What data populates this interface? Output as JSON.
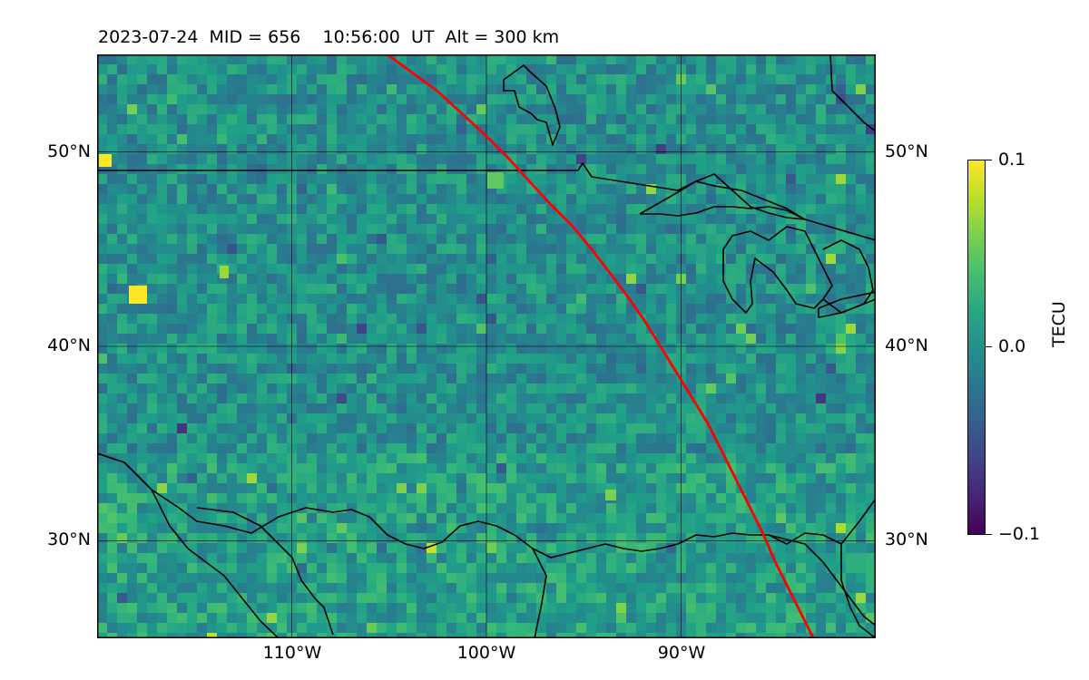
{
  "title": "2023-07-24  MID = 656    10:56:00  UT  Alt = 300 km",
  "map": {
    "lon_range": [
      -120,
      -80
    ],
    "lat_range": [
      25,
      55
    ],
    "lat_ticks": [
      {
        "value": 50,
        "label": "50°N"
      },
      {
        "value": 40,
        "label": "40°N"
      },
      {
        "value": 30,
        "label": "30°N"
      }
    ],
    "lon_ticks": [
      {
        "value": -110,
        "label": "110°W"
      },
      {
        "value": -100,
        "label": "100°W"
      },
      {
        "value": -90,
        "label": "90°W"
      }
    ],
    "grid": true,
    "track_color": "#ff0000",
    "coastline_color": "#000000",
    "terminator_track": [
      [
        -105.1,
        55.0
      ],
      [
        -104.0,
        54.2
      ],
      [
        -102.5,
        53.1
      ],
      [
        -101.3,
        52.0
      ],
      [
        -100.0,
        50.8
      ],
      [
        -98.9,
        49.7
      ],
      [
        -97.9,
        48.6
      ],
      [
        -96.8,
        47.4
      ],
      [
        -95.6,
        46.2
      ],
      [
        -94.6,
        45.0
      ],
      [
        -93.6,
        43.7
      ],
      [
        -92.7,
        42.5
      ],
      [
        -91.8,
        41.2
      ],
      [
        -91.0,
        39.9
      ],
      [
        -90.2,
        38.6
      ],
      [
        -89.4,
        37.3
      ],
      [
        -88.6,
        36.0
      ],
      [
        -87.9,
        34.6
      ],
      [
        -87.2,
        33.2
      ],
      [
        -86.5,
        31.8
      ],
      [
        -85.8,
        30.4
      ],
      [
        -85.2,
        29.0
      ],
      [
        -84.5,
        27.6
      ],
      [
        -83.8,
        26.2
      ],
      [
        -83.2,
        25.0
      ]
    ]
  },
  "colorbar": {
    "label": "TECU",
    "colormap": "viridis",
    "min": -0.1,
    "max": 0.1,
    "ticks": [
      {
        "value": 0.1,
        "label": "0.1"
      },
      {
        "value": 0.0,
        "label": "0.0"
      },
      {
        "value": -0.1,
        "label": "−0.1"
      }
    ]
  }
}
